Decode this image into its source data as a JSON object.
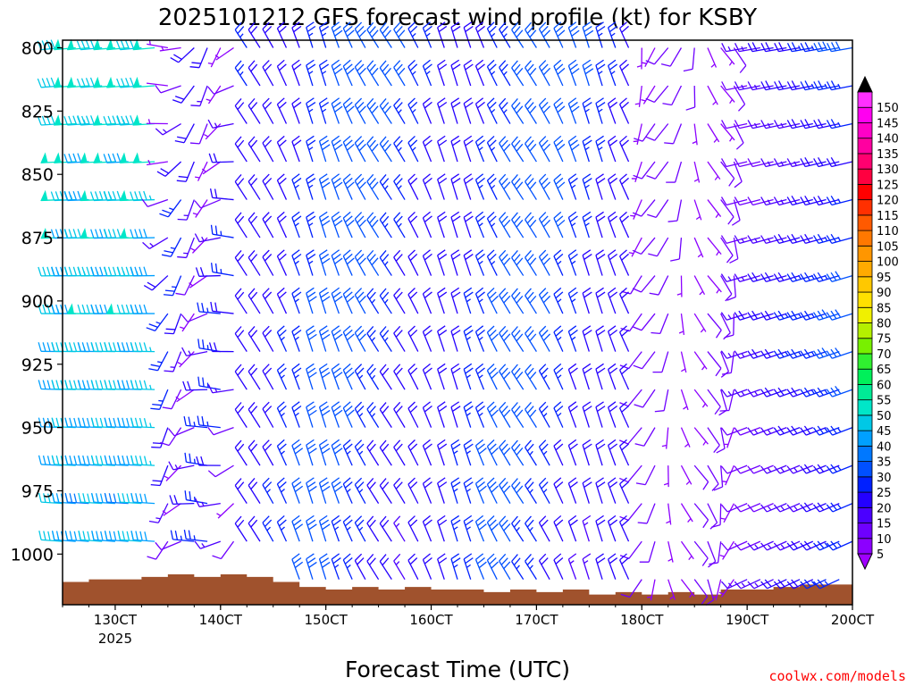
{
  "chart_data": {
    "type": "wind-barb-profile",
    "title": "2025101212 GFS forecast wind profile (kt) for KSBY",
    "xlabel": "Forecast Time (UTC)",
    "ylabel": "",
    "credit": "coolwx.com/models",
    "x_ticks": [
      {
        "label": "130CT",
        "sub": "2025",
        "hours": 24
      },
      {
        "label": "140CT",
        "sub": "",
        "hours": 48
      },
      {
        "label": "150CT",
        "sub": "",
        "hours": 72
      },
      {
        "label": "160CT",
        "sub": "",
        "hours": 96
      },
      {
        "label": "170CT",
        "sub": "",
        "hours": 120
      },
      {
        "label": "180CT",
        "sub": "",
        "hours": 144
      },
      {
        "label": "190CT",
        "sub": "",
        "hours": 168
      },
      {
        "label": "200CT",
        "sub": "",
        "hours": 192
      }
    ],
    "x_range_hours": [
      12,
      192
    ],
    "y_ticks": [
      800,
      825,
      850,
      875,
      900,
      925,
      950,
      975,
      1000
    ],
    "y_range_hpa": [
      797,
      1020
    ],
    "levels_hpa": [
      800,
      815,
      830,
      845,
      860,
      875,
      890,
      905,
      920,
      935,
      950,
      965,
      980,
      995,
      1010
    ],
    "time_step_hours": 3,
    "colorbar": {
      "labels": [
        "5",
        "10",
        "15",
        "20",
        "25",
        "30",
        "35",
        "40",
        "45",
        "50",
        "55",
        "60",
        "65",
        "70",
        "75",
        "80",
        "85",
        "90",
        "95",
        "100",
        "105",
        "110",
        "115",
        "120",
        "125",
        "130",
        "135",
        "140",
        "145",
        "150"
      ],
      "colors": [
        "#8c00ff",
        "#6e00ff",
        "#4b00ff",
        "#2400ff",
        "#0020ff",
        "#0050ff",
        "#0078ff",
        "#00a0ff",
        "#00c8e6",
        "#00e6c8",
        "#00eb96",
        "#00f05a",
        "#30f030",
        "#78f000",
        "#b4f000",
        "#f0f000",
        "#ffe000",
        "#ffc800",
        "#ffaa00",
        "#ff9600",
        "#ff7800",
        "#ff5a00",
        "#ff3000",
        "#ff0000",
        "#ff0040",
        "#ff0070",
        "#ff00a0",
        "#ff00c8",
        "#ff00f0",
        "#ff30ff"
      ],
      "min_arrow_color": "#a000ff",
      "max_arrow_color": "#000000"
    },
    "terrain_color": "#a0522d",
    "terrain_hpa": [
      [
        12,
        1011
      ],
      [
        18,
        1010
      ],
      [
        24,
        1010
      ],
      [
        30,
        1009
      ],
      [
        36,
        1008
      ],
      [
        42,
        1009
      ],
      [
        48,
        1008
      ],
      [
        54,
        1009
      ],
      [
        60,
        1011
      ],
      [
        66,
        1013
      ],
      [
        72,
        1014
      ],
      [
        78,
        1013
      ],
      [
        84,
        1014
      ],
      [
        90,
        1013
      ],
      [
        96,
        1014
      ],
      [
        102,
        1014
      ],
      [
        108,
        1015
      ],
      [
        114,
        1014
      ],
      [
        120,
        1015
      ],
      [
        126,
        1014
      ],
      [
        132,
        1016
      ],
      [
        138,
        1015
      ],
      [
        144,
        1016
      ],
      [
        150,
        1015
      ],
      [
        156,
        1016
      ],
      [
        162,
        1014
      ],
      [
        168,
        1014
      ],
      [
        174,
        1013
      ],
      [
        180,
        1012
      ],
      [
        186,
        1012
      ],
      [
        192,
        1011
      ]
    ],
    "wind_regimes": [
      {
        "from_hours": 12,
        "to_hours": 36,
        "description": "westerly 40-55 kt upper, 35-50 kt lower"
      },
      {
        "from_hours": 36,
        "to_hours": 54,
        "description": "light variable / southwesterly 10-25 kt"
      },
      {
        "from_hours": 54,
        "to_hours": 144,
        "description": "north-northwesterly 20-35 kt"
      },
      {
        "from_hours": 144,
        "to_hours": 168,
        "description": "southerly to southwesterly 5-15 kt"
      },
      {
        "from_hours": 168,
        "to_hours": 192,
        "description": "westerly 10-30 kt, increasing late"
      }
    ]
  }
}
